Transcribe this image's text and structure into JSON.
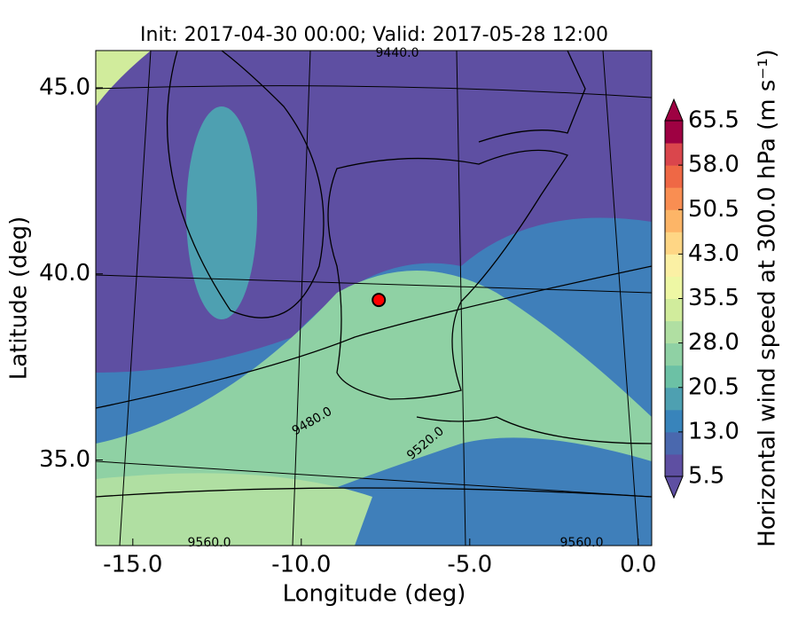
{
  "chart_data": {
    "type": "map",
    "title": "Init: 2017-04-30 00:00; Valid: 2017-05-28 12:00",
    "xlabel": "Longitude (deg)",
    "ylabel": "Latitude (deg)",
    "xlim": [
      -16.1,
      0.4
    ],
    "ylim": [
      32.7,
      46.0
    ],
    "xticks": [
      {
        "value": -15,
        "label": "-15.0"
      },
      {
        "value": -10,
        "label": "-10.0"
      },
      {
        "value": -5,
        "label": "-5.0"
      },
      {
        "value": 0,
        "label": "0.0"
      }
    ],
    "yticks": [
      {
        "value": 35,
        "label": "35.0"
      },
      {
        "value": 40,
        "label": "40.0"
      },
      {
        "value": 45,
        "label": "45.0"
      }
    ],
    "marker": {
      "lon": -7.7,
      "lat": 39.3,
      "color": "#ff0000"
    },
    "contour_labels": [
      "9440.0",
      "9480.0",
      "9520.0",
      "9560.0",
      "9560.0"
    ],
    "colorbar": {
      "label": "Horizontal wind speed at 300.0 hPa (m s⁻¹)",
      "lim": [
        5.5,
        65.5
      ],
      "ticks": [
        5.5,
        {
          "value": 13,
          "label": "13.0"
        },
        20.5,
        {
          "value": 28,
          "label": "28.0"
        },
        35.5,
        {
          "value": 43,
          "label": "43.0"
        },
        50.5,
        {
          "value": 58,
          "label": "58.0"
        },
        65.5
      ],
      "colors": [
        "#5e4fa2",
        "#4a68ae",
        "#3884bb",
        "#4ea0b1",
        "#6cc1a5",
        "#8fd1a4",
        "#b0dfa2",
        "#d1ec9c",
        "#eef7a4",
        "#fbf0a4",
        "#fed685",
        "#fdb567",
        "#f98e52",
        "#ef6845",
        "#da464c",
        "#9e0142"
      ]
    }
  }
}
